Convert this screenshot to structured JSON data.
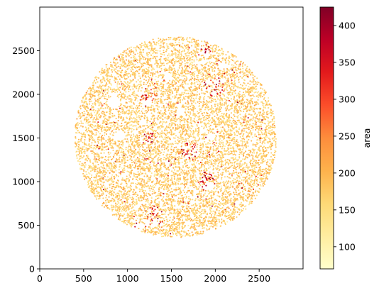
{
  "chart_data": {
    "type": "scatter",
    "title": "",
    "xlabel": "",
    "ylabel": "",
    "xlim": [
      0,
      3000
    ],
    "ylim": [
      0,
      3000
    ],
    "xticks": [
      0,
      500,
      1000,
      1500,
      2000,
      2500
    ],
    "yticks": [
      0,
      500,
      1000,
      1500,
      2000,
      2500
    ],
    "grid": false,
    "point_region": {
      "shape": "circle",
      "center": [
        1550,
        1510
      ],
      "radius": 1150,
      "approx_points": 9000
    },
    "holes": [
      {
        "center": [
          850,
          1910
        ],
        "radius": 70
      },
      {
        "center": [
          920,
          1530
        ],
        "radius": 55
      },
      {
        "center": [
          1240,
          1900
        ],
        "radius": 45
      },
      {
        "center": [
          1460,
          2210
        ],
        "radius": 40
      },
      {
        "center": [
          1610,
          1800
        ],
        "radius": 45
      },
      {
        "center": [
          1950,
          1520
        ],
        "radius": 40
      },
      {
        "center": [
          1950,
          950
        ],
        "radius": 45
      },
      {
        "center": [
          2070,
          2320
        ],
        "radius": 40
      },
      {
        "center": [
          1180,
          1680
        ],
        "radius": 40
      }
    ],
    "high_value_clusters": [
      {
        "center": [
          1250,
          1950
        ],
        "radius": 110
      },
      {
        "center": [
          2000,
          2100
        ],
        "radius": 130
      },
      {
        "center": [
          1870,
          2500
        ],
        "radius": 80
      },
      {
        "center": [
          1700,
          1350
        ],
        "radius": 120
      },
      {
        "center": [
          1900,
          1000
        ],
        "radius": 110
      },
      {
        "center": [
          1300,
          600
        ],
        "radius": 120
      },
      {
        "center": [
          1250,
          1500
        ],
        "radius": 80
      }
    ],
    "colorbar": {
      "label": "area",
      "colormap": "YlOrRd",
      "min": 70,
      "max": 425,
      "ticks": [
        100,
        150,
        200,
        250,
        300,
        350,
        400
      ]
    },
    "colors": {
      "cmap_stops": [
        "#ffffcc",
        "#ffeda0",
        "#fed976",
        "#feb24c",
        "#fd8d3c",
        "#fc4e2a",
        "#e31a1c",
        "#bd0026",
        "#800026"
      ]
    }
  }
}
